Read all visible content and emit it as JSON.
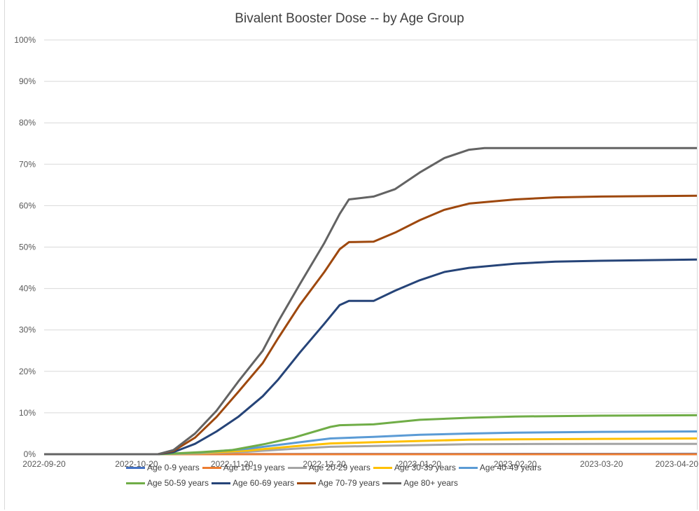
{
  "chart_data": {
    "type": "line",
    "title": "Bivalent Booster Dose -- by Age Group",
    "xlabel": "",
    "ylabel": "",
    "x_ticks": [
      "2022-09-20",
      "2022-10-20",
      "2022-11-20",
      "2022-12-20",
      "2023-01-20",
      "2023-02-20",
      "2023-03-20",
      "2023-04-20"
    ],
    "y_ticks": [
      "0%",
      "10%",
      "20%",
      "30%",
      "40%",
      "50%",
      "60%",
      "70%",
      "80%",
      "90%",
      "100%"
    ],
    "xlim": [
      "2022-09-20",
      "2023-04-20"
    ],
    "ylim": [
      0,
      100
    ],
    "grid": "horizontal",
    "legend_position": "bottom",
    "series": [
      {
        "name": "Age 0-9 years",
        "color": "#4472c4",
        "points": [
          [
            "2022-09-20",
            0
          ],
          [
            "2022-10-27",
            0
          ],
          [
            "2022-11-15",
            0
          ],
          [
            "2022-11-30",
            0.05
          ],
          [
            "2023-04-20",
            0.1
          ]
        ]
      },
      {
        "name": "Age 10-19 years",
        "color": "#ed7d31",
        "points": [
          [
            "2022-09-20",
            0
          ],
          [
            "2022-10-27",
            0
          ],
          [
            "2022-11-15",
            0
          ],
          [
            "2023-04-20",
            0
          ]
        ]
      },
      {
        "name": "Age 20-29 years",
        "color": "#a5a5a5",
        "points": [
          [
            "2022-09-20",
            0
          ],
          [
            "2022-10-27",
            0
          ],
          [
            "2022-11-10",
            0.2
          ],
          [
            "2022-11-25",
            0.6
          ],
          [
            "2022-12-10",
            1.3
          ],
          [
            "2022-12-22",
            1.8
          ],
          [
            "2023-01-05",
            2.0
          ],
          [
            "2023-01-20",
            2.2
          ],
          [
            "2023-02-05",
            2.4
          ],
          [
            "2023-02-20",
            2.45
          ],
          [
            "2023-03-20",
            2.5
          ],
          [
            "2023-04-20",
            2.5
          ]
        ]
      },
      {
        "name": "Age 30-39 years",
        "color": "#ffc000",
        "points": [
          [
            "2022-09-20",
            0
          ],
          [
            "2022-10-27",
            0
          ],
          [
            "2022-11-10",
            0.3
          ],
          [
            "2022-11-25",
            0.9
          ],
          [
            "2022-12-10",
            1.9
          ],
          [
            "2022-12-22",
            2.6
          ],
          [
            "2023-01-05",
            2.9
          ],
          [
            "2023-01-20",
            3.2
          ],
          [
            "2023-02-05",
            3.5
          ],
          [
            "2023-02-20",
            3.6
          ],
          [
            "2023-03-20",
            3.7
          ],
          [
            "2023-04-20",
            3.8
          ]
        ]
      },
      {
        "name": "Age 40-49 years",
        "color": "#5b9bd5",
        "points": [
          [
            "2022-09-20",
            0
          ],
          [
            "2022-10-27",
            0
          ],
          [
            "2022-11-10",
            0.4
          ],
          [
            "2022-11-25",
            1.3
          ],
          [
            "2022-12-10",
            2.7
          ],
          [
            "2022-12-22",
            3.8
          ],
          [
            "2023-01-05",
            4.2
          ],
          [
            "2023-01-20",
            4.7
          ],
          [
            "2023-02-05",
            5.0
          ],
          [
            "2023-02-20",
            5.2
          ],
          [
            "2023-03-20",
            5.4
          ],
          [
            "2023-04-20",
            5.5
          ]
        ]
      },
      {
        "name": "Age 50-59 years",
        "color": "#70ad47",
        "points": [
          [
            "2022-09-20",
            0
          ],
          [
            "2022-10-27",
            0
          ],
          [
            "2022-11-10",
            0.5
          ],
          [
            "2022-11-20",
            1.0
          ],
          [
            "2022-12-01",
            2.5
          ],
          [
            "2022-12-10",
            4.0
          ],
          [
            "2022-12-22",
            6.6
          ],
          [
            "2022-12-25",
            7.0
          ],
          [
            "2023-01-05",
            7.2
          ],
          [
            "2023-01-20",
            8.3
          ],
          [
            "2023-02-05",
            8.8
          ],
          [
            "2023-02-20",
            9.1
          ],
          [
            "2023-03-20",
            9.3
          ],
          [
            "2023-04-20",
            9.4
          ]
        ]
      },
      {
        "name": "Age 60-69 years",
        "color": "#264478",
        "points": [
          [
            "2022-09-20",
            0
          ],
          [
            "2022-10-27",
            0
          ],
          [
            "2022-11-01",
            0.5
          ],
          [
            "2022-11-08",
            2.5
          ],
          [
            "2022-11-15",
            5.5
          ],
          [
            "2022-11-22",
            9.0
          ],
          [
            "2022-11-30",
            14.0
          ],
          [
            "2022-12-05",
            18.0
          ],
          [
            "2022-12-12",
            24.5
          ],
          [
            "2022-12-20",
            31.5
          ],
          [
            "2022-12-25",
            36.0
          ],
          [
            "2022-12-28",
            37.0
          ],
          [
            "2023-01-05",
            37.0
          ],
          [
            "2023-01-12",
            39.5
          ],
          [
            "2023-01-20",
            42.0
          ],
          [
            "2023-01-28",
            44.0
          ],
          [
            "2023-02-05",
            45.0
          ],
          [
            "2023-02-20",
            46.0
          ],
          [
            "2023-03-05",
            46.5
          ],
          [
            "2023-03-20",
            46.7
          ],
          [
            "2023-04-20",
            47.0
          ]
        ]
      },
      {
        "name": "Age 70-79 years",
        "color": "#9e480e",
        "points": [
          [
            "2022-09-20",
            0
          ],
          [
            "2022-10-27",
            0
          ],
          [
            "2022-11-01",
            0.8
          ],
          [
            "2022-11-08",
            4.0
          ],
          [
            "2022-11-15",
            9.0
          ],
          [
            "2022-11-22",
            15.0
          ],
          [
            "2022-11-30",
            22.0
          ],
          [
            "2022-12-05",
            28.0
          ],
          [
            "2022-12-12",
            36.0
          ],
          [
            "2022-12-20",
            44.0
          ],
          [
            "2022-12-25",
            49.5
          ],
          [
            "2022-12-28",
            51.2
          ],
          [
            "2023-01-05",
            51.3
          ],
          [
            "2023-01-12",
            53.5
          ],
          [
            "2023-01-20",
            56.5
          ],
          [
            "2023-01-28",
            59.0
          ],
          [
            "2023-02-05",
            60.5
          ],
          [
            "2023-02-20",
            61.5
          ],
          [
            "2023-03-05",
            62.0
          ],
          [
            "2023-03-20",
            62.2
          ],
          [
            "2023-04-20",
            62.4
          ]
        ]
      },
      {
        "name": "Age 80+ years",
        "color": "#636363",
        "points": [
          [
            "2022-09-20",
            0
          ],
          [
            "2022-10-27",
            0
          ],
          [
            "2022-11-01",
            1.0
          ],
          [
            "2022-11-08",
            5.0
          ],
          [
            "2022-11-15",
            10.5
          ],
          [
            "2022-11-22",
            17.5
          ],
          [
            "2022-11-30",
            25.0
          ],
          [
            "2022-12-05",
            32.0
          ],
          [
            "2022-12-12",
            41.0
          ],
          [
            "2022-12-20",
            51.0
          ],
          [
            "2022-12-25",
            58.0
          ],
          [
            "2022-12-28",
            61.5
          ],
          [
            "2023-01-05",
            62.2
          ],
          [
            "2023-01-12",
            64.0
          ],
          [
            "2023-01-20",
            68.0
          ],
          [
            "2023-01-28",
            71.5
          ],
          [
            "2023-02-05",
            73.5
          ],
          [
            "2023-02-10",
            73.9
          ],
          [
            "2023-02-20",
            73.9
          ],
          [
            "2023-03-20",
            73.9
          ],
          [
            "2023-04-20",
            73.9
          ]
        ]
      }
    ]
  }
}
